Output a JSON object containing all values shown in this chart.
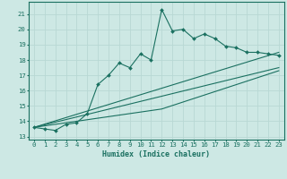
{
  "title": "",
  "xlabel": "Humidex (Indice chaleur)",
  "bg_color": "#cde8e4",
  "line_color": "#1a7060",
  "grid_color": "#b8d8d4",
  "xlim": [
    -0.5,
    23.5
  ],
  "ylim": [
    12.8,
    21.8
  ],
  "xticks": [
    0,
    1,
    2,
    3,
    4,
    5,
    6,
    7,
    8,
    9,
    10,
    11,
    12,
    13,
    14,
    15,
    16,
    17,
    18,
    19,
    20,
    21,
    22,
    23
  ],
  "yticks": [
    13,
    14,
    15,
    16,
    17,
    18,
    19,
    20,
    21
  ],
  "line1_x": [
    0,
    1,
    2,
    3,
    4,
    5,
    6,
    7,
    8,
    9,
    10,
    11,
    12,
    13,
    14,
    15,
    16,
    17,
    18,
    19,
    20,
    21,
    22,
    23
  ],
  "line1_y": [
    13.6,
    13.5,
    13.4,
    13.8,
    13.9,
    14.5,
    16.4,
    17.0,
    17.8,
    17.5,
    18.4,
    18.0,
    21.3,
    19.9,
    20.0,
    19.4,
    19.7,
    19.4,
    18.9,
    18.8,
    18.5,
    18.5,
    18.4,
    18.3
  ],
  "line2_x": [
    0,
    23
  ],
  "line2_y": [
    13.6,
    17.5
  ],
  "line3_x": [
    0,
    23
  ],
  "line3_y": [
    13.6,
    18.5
  ],
  "line4_x": [
    0,
    12,
    23
  ],
  "line4_y": [
    13.6,
    14.8,
    17.3
  ],
  "xlabel_fontsize": 6.0,
  "tick_fontsize": 5.2
}
